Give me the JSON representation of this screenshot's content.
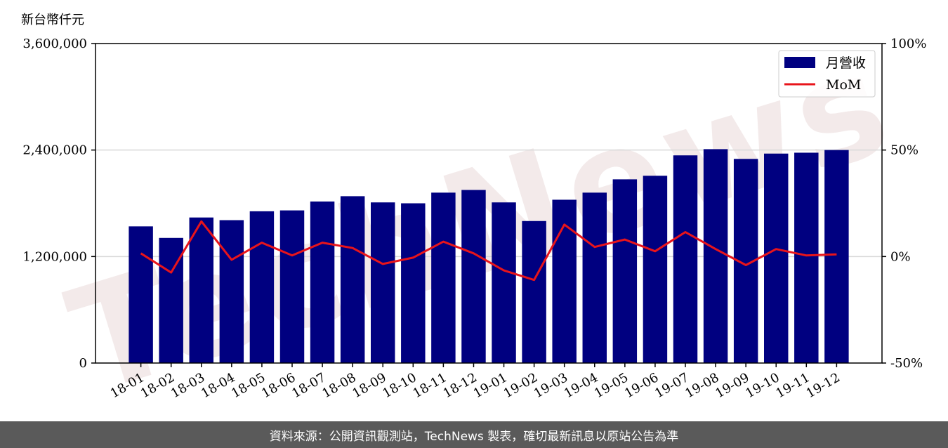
{
  "unit_label": "新台幣仟元",
  "footer": {
    "source_text": "資料來源：公開資訊觀測站，TechNews 製表，確切最新訊息以原站公告為準"
  },
  "watermark": "TechNews",
  "colors": {
    "bar": "#000080",
    "line": "#e8141b",
    "grid": "#d9d9d9",
    "footer_bg": "#5a5a5a",
    "watermark": "#f2e8e8"
  },
  "chart_data": {
    "type": "bar",
    "categories": [
      "18-01",
      "18-02",
      "18-03",
      "18-04",
      "18-05",
      "18-06",
      "18-07",
      "18-08",
      "18-09",
      "18-10",
      "18-11",
      "18-12",
      "19-01",
      "19-02",
      "19-03",
      "19-04",
      "19-05",
      "19-06",
      "19-07",
      "19-08",
      "19-09",
      "19-10",
      "19-11",
      "19-12"
    ],
    "series": [
      {
        "name": "月營收",
        "type": "bar",
        "axis": "left",
        "values": [
          1540000,
          1410000,
          1640000,
          1610000,
          1710000,
          1720000,
          1820000,
          1880000,
          1810000,
          1800000,
          1920000,
          1950000,
          1810000,
          1600000,
          1840000,
          1920000,
          2070000,
          2110000,
          2340000,
          2410000,
          2300000,
          2360000,
          2370000,
          2400000
        ]
      },
      {
        "name": "MoM",
        "type": "line",
        "axis": "right",
        "values": [
          1.5,
          -7.5,
          16.5,
          -1.5,
          6.5,
          0.5,
          6.5,
          4.0,
          -3.5,
          -0.5,
          7.0,
          1.5,
          -6.5,
          -11.0,
          15.0,
          4.5,
          8.0,
          2.5,
          11.5,
          3.5,
          -4.0,
          3.5,
          0.5,
          1.0
        ]
      }
    ],
    "y_left": {
      "min": 0,
      "max": 3600000,
      "ticks": [
        0,
        1200000,
        2400000,
        3600000
      ],
      "tick_labels": [
        "0",
        "1,200,000",
        "2,400,000",
        "3,600,000"
      ]
    },
    "y_right": {
      "min": -50,
      "max": 100,
      "ticks": [
        -50,
        0,
        50,
        100
      ],
      "tick_labels": [
        "-50%",
        "0%",
        "50%",
        "100%"
      ]
    },
    "grid": "horizontal",
    "legend": {
      "position": "top-right",
      "entries": [
        "月營收",
        "MoM"
      ]
    }
  }
}
